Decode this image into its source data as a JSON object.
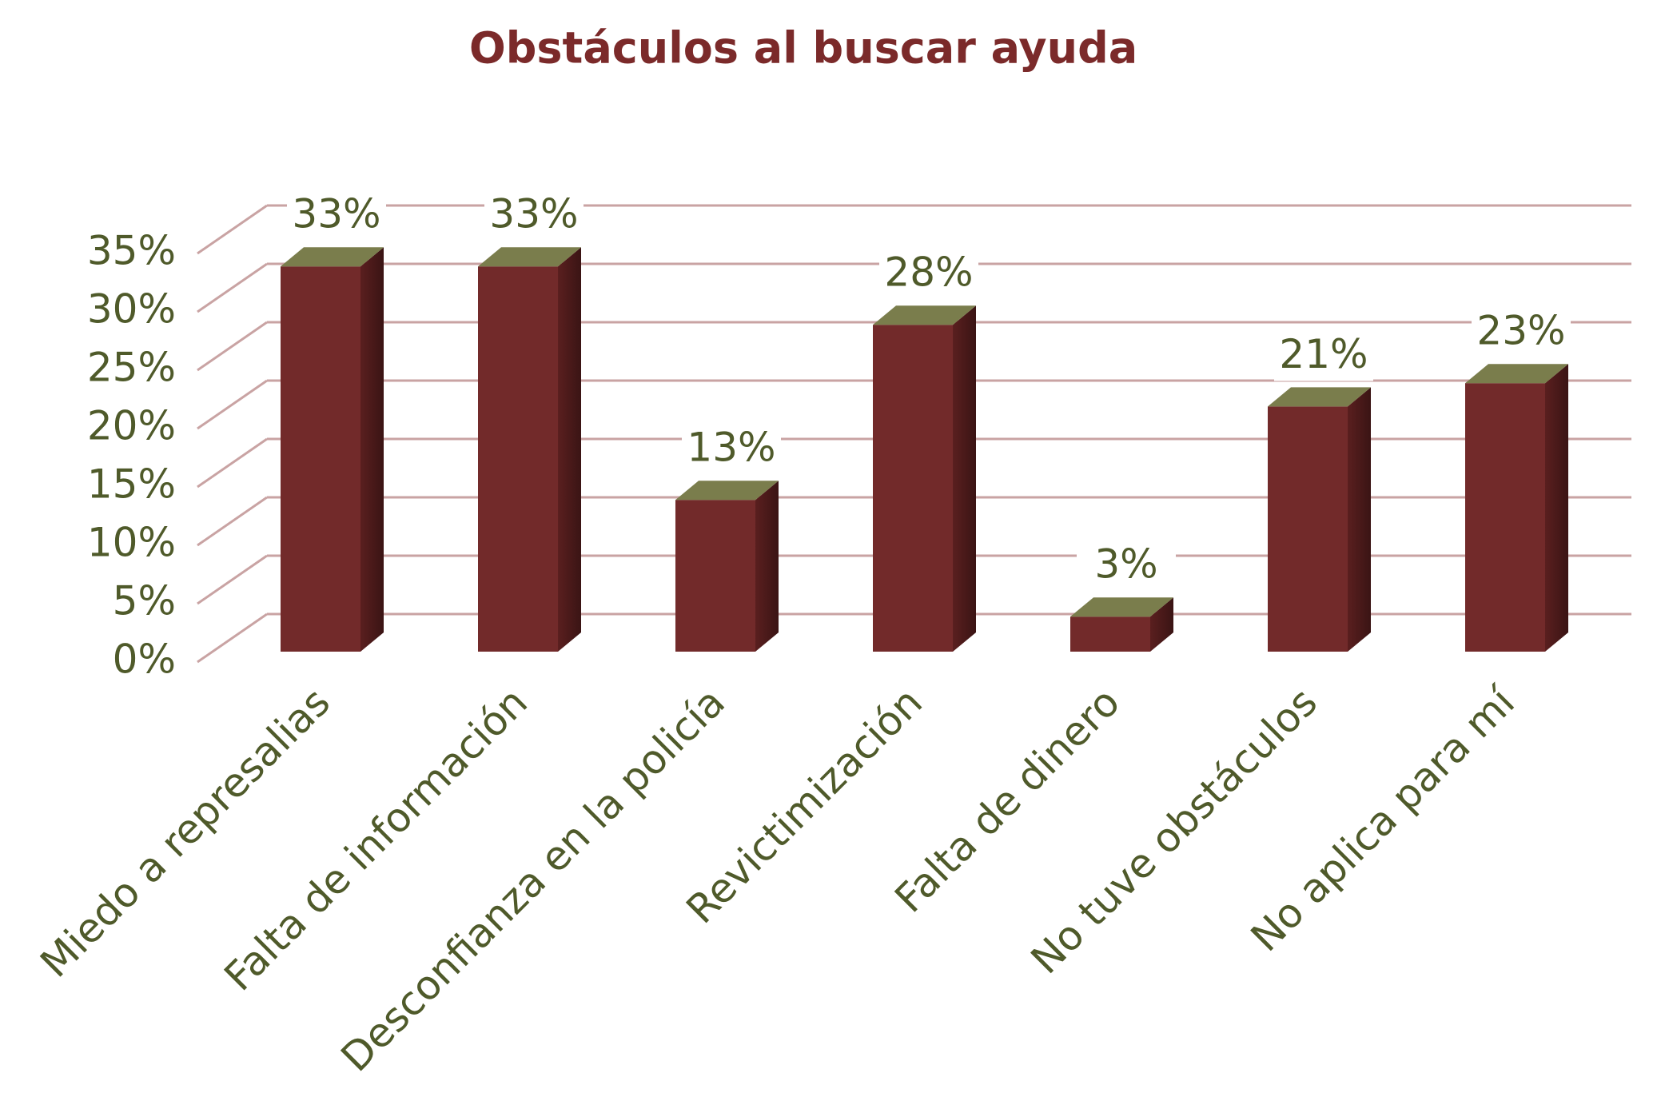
{
  "chart_data": {
    "type": "bar3d",
    "title": "Obstáculos al buscar ayuda",
    "categories": [
      "Miedo a represalias",
      "Falta de información",
      "Desconfianza en la policía",
      "Revictimización",
      "Falta de dinero",
      "No tuve obstáculos",
      "No aplica para mí"
    ],
    "values": [
      33,
      33,
      13,
      28,
      3,
      21,
      23
    ],
    "value_labels": [
      "33%",
      "33%",
      "13%",
      "28%",
      "3%",
      "21%",
      "23%"
    ],
    "color": "#722a2a",
    "ylim": [
      0,
      35
    ],
    "yticks": [
      {
        "value": 0,
        "label": "0%"
      },
      {
        "value": 5,
        "label": "5%"
      },
      {
        "value": 10,
        "label": "10%"
      },
      {
        "value": 15,
        "label": "15%"
      },
      {
        "value": 20,
        "label": "20%"
      },
      {
        "value": 25,
        "label": "25%"
      },
      {
        "value": 30,
        "label": "30%"
      },
      {
        "value": 35,
        "label": "35%"
      }
    ],
    "grid": true
  }
}
